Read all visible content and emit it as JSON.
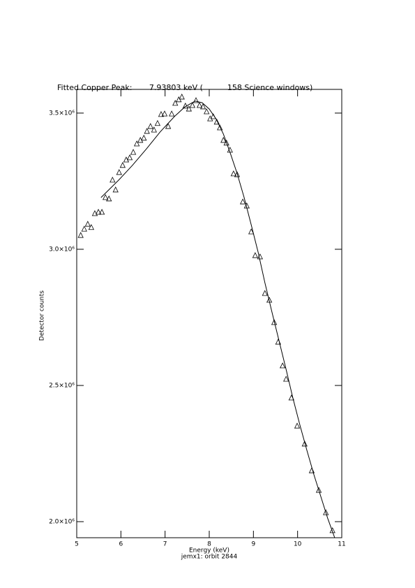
{
  "chart_data": {
    "type": "scatter",
    "title": "Fitted Copper Peak:       7.93803 keV (          158 Science windows)",
    "x_label": "Energy (keV)",
    "subtitle": "jemx1: orbit 2844",
    "y_label": "Detector counts",
    "xlim": [
      5,
      11
    ],
    "xticks": [
      5,
      6,
      7,
      8,
      9,
      10,
      11
    ],
    "ylim": [
      1941000,
      3587000
    ],
    "yticks": [
      {
        "value": 2000000,
        "label": "2.0×10⁶"
      },
      {
        "value": 2500000,
        "label": "2.5×10⁶"
      },
      {
        "value": 3000000,
        "label": "3.0×10⁶"
      },
      {
        "value": 3500000,
        "label": "3.5×10⁶"
      }
    ],
    "color": "#000000",
    "series": [
      {
        "marker": "triangle",
        "x": [
          5.09,
          5.17,
          5.25,
          5.33,
          5.41,
          5.49,
          5.57,
          5.65,
          5.73,
          5.81,
          5.88,
          5.96,
          6.04,
          6.12,
          6.2,
          6.28,
          6.36,
          6.44,
          6.52,
          6.59,
          6.67,
          6.75,
          6.83,
          6.91,
          6.99,
          7.07,
          7.15,
          7.23,
          7.31,
          7.38,
          7.46,
          7.54,
          7.62,
          7.7,
          7.78,
          7.86,
          7.94,
          8.02,
          8.09,
          8.17,
          8.24,
          8.32,
          8.39,
          8.47,
          8.55,
          8.63,
          8.76,
          8.85,
          8.95,
          9.04,
          9.15,
          9.26,
          9.36,
          9.47,
          9.56,
          9.66,
          9.74,
          9.86,
          9.99,
          10.16,
          10.32,
          10.48,
          10.64,
          10.79
        ],
        "values": [
          3051000,
          3074000,
          3092000,
          3080000,
          3131000,
          3136000,
          3136000,
          3190000,
          3185000,
          3254000,
          3218000,
          3282000,
          3308000,
          3328000,
          3336000,
          3356000,
          3387000,
          3400000,
          3408000,
          3433000,
          3451000,
          3438000,
          3462000,
          3495000,
          3497000,
          3451000,
          3497000,
          3536000,
          3549000,
          3559000,
          3526000,
          3515000,
          3528000,
          3546000,
          3528000,
          3523000,
          3505000,
          3479000,
          3487000,
          3467000,
          3446000,
          3400000,
          3390000,
          3364000,
          3277000,
          3274000,
          3174000,
          3159000,
          3064000,
          2977000,
          2972000,
          2838000,
          2813000,
          2731000,
          2659000,
          2572000,
          2523000,
          2454000,
          2351000,
          2285000,
          2187000,
          2115000,
          2033000,
          1967000
        ]
      },
      {
        "marker": "line",
        "x": [
          5.55,
          5.95,
          6.26,
          6.58,
          6.89,
          7.21,
          7.45,
          7.68,
          7.84,
          8.0,
          8.16,
          8.32,
          8.47,
          8.63,
          8.79,
          8.95,
          9.11,
          9.26,
          9.42,
          9.58,
          9.74,
          9.89,
          10.05,
          10.21,
          10.37,
          10.53,
          10.68,
          10.84
        ],
        "values": [
          3190000,
          3254000,
          3308000,
          3369000,
          3431000,
          3487000,
          3523000,
          3544000,
          3538000,
          3515000,
          3477000,
          3423000,
          3356000,
          3279000,
          3190000,
          3090000,
          2987000,
          2877000,
          2769000,
          2664000,
          2559000,
          2456000,
          2356000,
          2262000,
          2172000,
          2090000,
          2013000,
          1941000
        ]
      }
    ]
  }
}
